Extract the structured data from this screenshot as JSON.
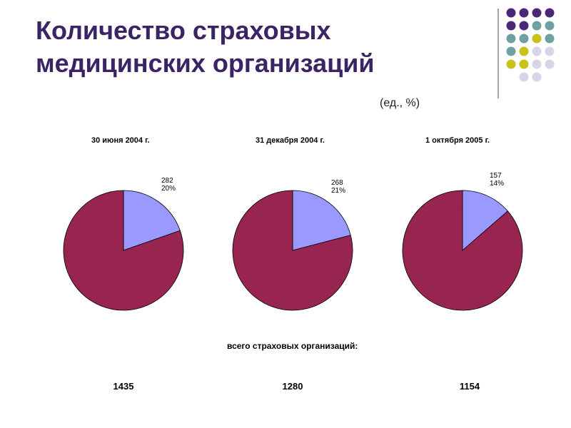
{
  "title": "Количество страховых медицинских организаций",
  "units": "(ед., %)",
  "colors": {
    "accent": "#98254f",
    "minority": "#9999ff",
    "title": "#3b2465",
    "dot_purple": "#4b2778",
    "dot_teal": "#6fa0a3",
    "dot_yellow": "#c8c31a",
    "dot_lavender": "#d6d4e8"
  },
  "chart_data": [
    {
      "type": "pie",
      "title": "30 июня 2004 г.",
      "slices": [
        {
          "value": 282,
          "percent": 20,
          "color": "#9999ff",
          "label": "282",
          "pct_label": "20%"
        },
        {
          "value": 1153,
          "percent": 80,
          "color": "#98254f",
          "label": "",
          "pct_label": ""
        }
      ],
      "total": "1435"
    },
    {
      "type": "pie",
      "title": "31 декабря 2004 г.",
      "slices": [
        {
          "value": 268,
          "percent": 21,
          "color": "#9999ff",
          "label": "268",
          "pct_label": "21%"
        },
        {
          "value": 1012,
          "percent": 79,
          "color": "#98254f",
          "label": "",
          "pct_label": ""
        }
      ],
      "total": "1280"
    },
    {
      "type": "pie",
      "title": "1 октября 2005 г.",
      "slices": [
        {
          "value": 157,
          "percent": 14,
          "color": "#9999ff",
          "label": "157",
          "pct_label": "14%"
        },
        {
          "value": 997,
          "percent": 86,
          "color": "#98254f",
          "label": "",
          "pct_label": ""
        }
      ],
      "total": "1154"
    }
  ],
  "totals_caption": "всего страховых организаций:"
}
